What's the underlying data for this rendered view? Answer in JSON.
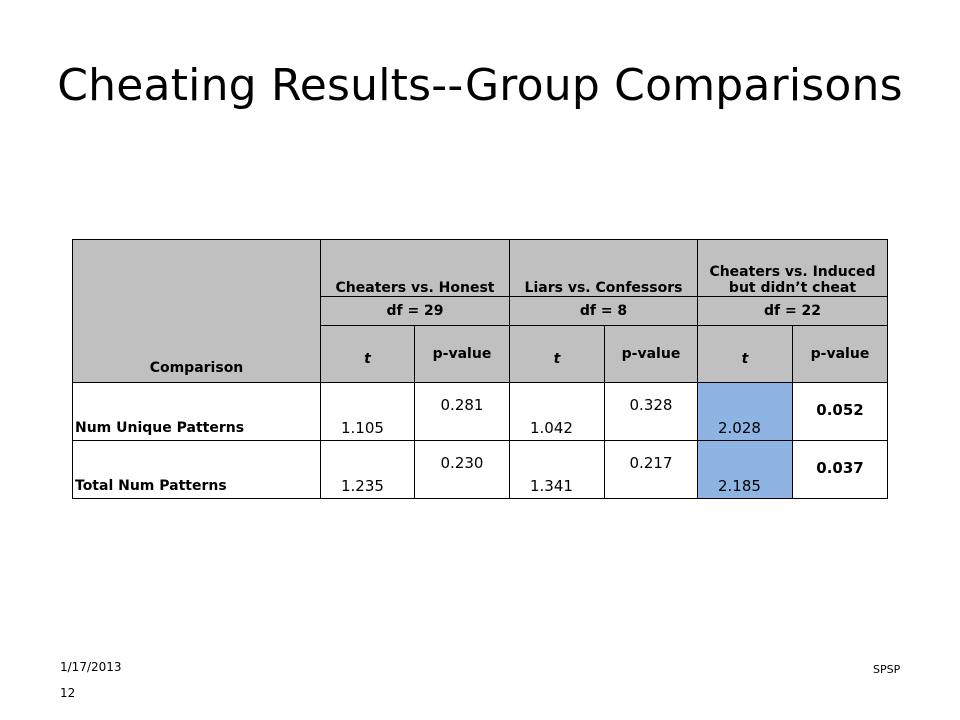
{
  "slide": {
    "title": "Cheating Results--Group Comparisons",
    "footer": {
      "date": "1/17/2013",
      "page": "12",
      "label": "SPSP"
    }
  },
  "table": {
    "comparison_header": "Comparison",
    "groups": [
      {
        "name": "Cheaters vs. Honest",
        "df": "df = 29"
      },
      {
        "name": "Liars vs. Confessors",
        "df": "df = 8"
      },
      {
        "name": "Cheaters vs. Induced but didn’t cheat",
        "df": "df = 22"
      }
    ],
    "stat_label": "t",
    "p_label": "p-value",
    "rows": [
      {
        "label": "Num Unique Patterns",
        "values": [
          {
            "t": "1.105",
            "p": "0.281"
          },
          {
            "t": "1.042",
            "p": "0.328"
          },
          {
            "t": "2.028",
            "p": "0.052"
          }
        ]
      },
      {
        "label": "Total Num Patterns",
        "values": [
          {
            "t": "1.235",
            "p": "0.230"
          },
          {
            "t": "1.341",
            "p": "0.217"
          },
          {
            "t": "2.185",
            "p": "0.037"
          }
        ]
      }
    ],
    "colors": {
      "header_bg": "#c0c0c0",
      "highlight_bg": "#8eb4e3"
    }
  }
}
